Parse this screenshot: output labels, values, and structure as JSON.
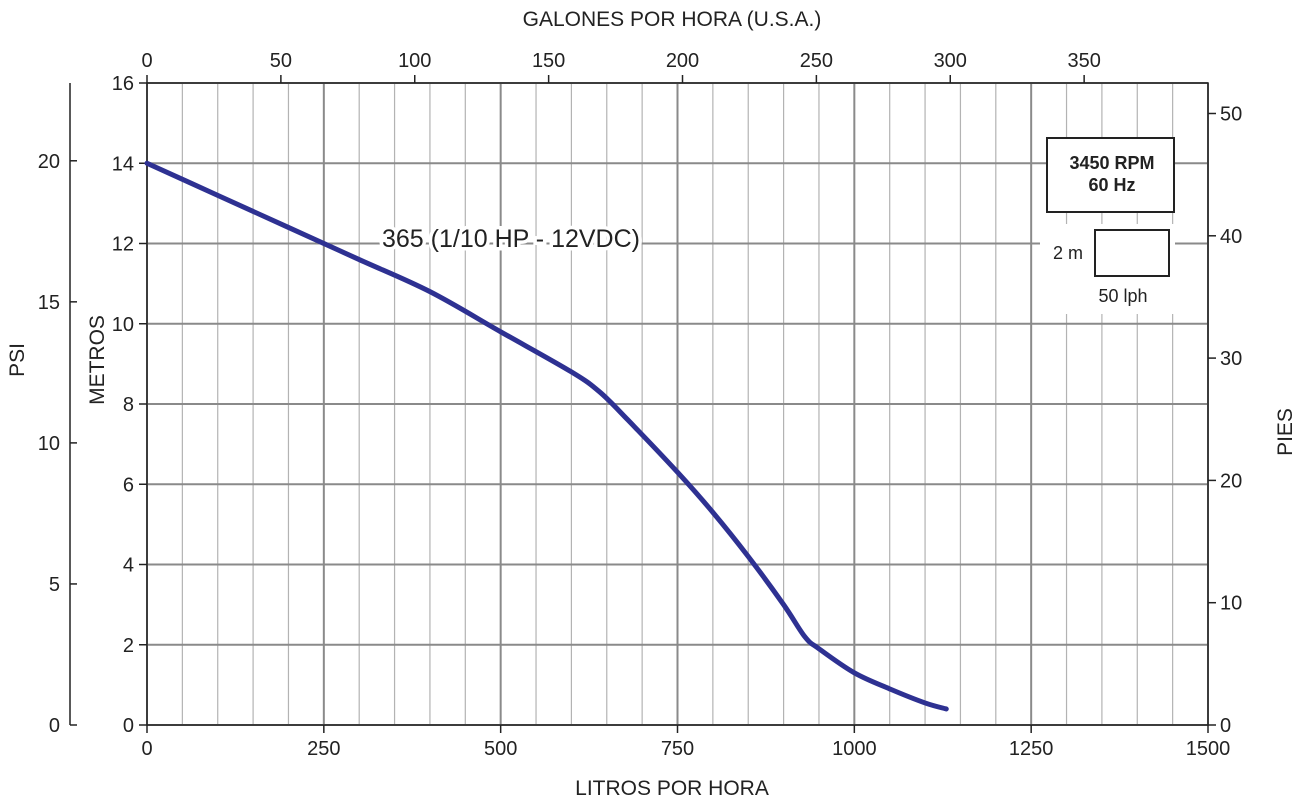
{
  "chart_data": {
    "type": "line",
    "title": "",
    "xlabel": "LITROS POR HORA",
    "x2label": "GALONES POR HORA (U.S.A.)",
    "ylabel": "METROS",
    "y2label": "PIES",
    "y3label": "PSI",
    "xlim": [
      0,
      1500
    ],
    "ylim": [
      0,
      16
    ],
    "x_ticks": [
      "0",
      "250",
      "500",
      "750",
      "1000",
      "1250",
      "1500"
    ],
    "x_minor_step": 50,
    "x2_ticks": [
      "0",
      "50",
      "100",
      "150",
      "200",
      "250",
      "300",
      "350"
    ],
    "x2_values": [
      0,
      50,
      100,
      150,
      200,
      250,
      300,
      350
    ],
    "y_ticks": [
      "0",
      "2",
      "4",
      "6",
      "8",
      "10",
      "12",
      "14",
      "16"
    ],
    "y2_ticks": [
      "0",
      "10",
      "20",
      "30",
      "40",
      "50"
    ],
    "y2_values": [
      0,
      10,
      20,
      30,
      40,
      50
    ],
    "y3_ticks": [
      "0",
      "5",
      "10",
      "15",
      "20"
    ],
    "y3_values": [
      0,
      5,
      10,
      15,
      20
    ],
    "grid": true,
    "series": [
      {
        "name": "365 (1/10 HP - 12VDC)",
        "color": "#2e3192",
        "x": [
          0,
          100,
          200,
          300,
          400,
          500,
          600,
          640,
          680,
          750,
          800,
          850,
          900,
          930,
          950,
          1000,
          1050,
          1100,
          1130
        ],
        "y": [
          14.0,
          13.2,
          12.4,
          11.6,
          10.8,
          9.8,
          8.8,
          8.3,
          7.6,
          6.3,
          5.3,
          4.2,
          3.0,
          2.2,
          1.9,
          1.3,
          0.9,
          0.55,
          0.4
        ]
      }
    ],
    "annotations": {
      "curve_label": "365 (1/10 HP - 12VDC)",
      "speed_line1": "3450 RPM",
      "speed_line2": "60 Hz",
      "scale_y": "2 m",
      "scale_x": "50 lph"
    }
  }
}
